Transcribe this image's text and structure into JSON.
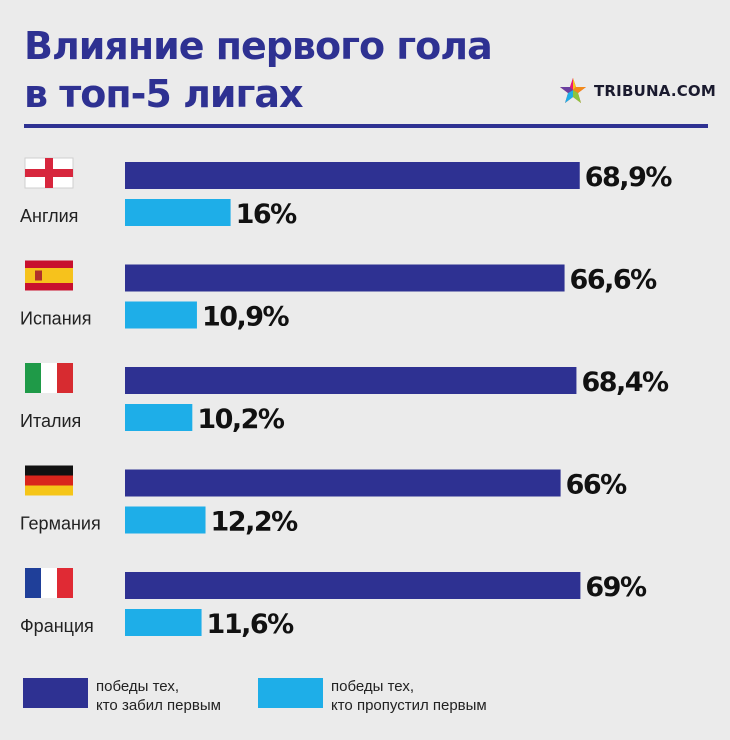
{
  "header": {
    "title_line1": "Влияние первого гола",
    "title_line2": "в топ-5 лигах",
    "logo_text": "TRIBUNA.COM"
  },
  "colors": {
    "background": "#ebebeb",
    "accent": "#2e3192",
    "scored_first": "#2e3192",
    "conceded_first": "#1eaee8"
  },
  "chart_data": {
    "type": "bar",
    "orientation": "horizontal",
    "title": "Влияние первого гола в топ-5 лигах",
    "categories": [
      "Англия",
      "Испания",
      "Италия",
      "Германия",
      "Франция"
    ],
    "flags": [
      "england-flag-icon",
      "spain-flag-icon",
      "italy-flag-icon",
      "germany-flag-icon",
      "france-flag-icon"
    ],
    "series": [
      {
        "name": "победы тех,\nкто забил первым",
        "color": "#2e3192",
        "values": [
          68.9,
          66.6,
          68.4,
          66,
          69
        ],
        "labels": [
          "68,9%",
          "66,6%",
          "68,4%",
          "66%",
          "69%"
        ]
      },
      {
        "name": "победы тех,\nкто пропустил первым",
        "color": "#1eaee8",
        "values": [
          16,
          10.9,
          10.2,
          12.2,
          11.6
        ],
        "labels": [
          "16%",
          "10,9%",
          "10,2%",
          "12,2%",
          "11,6%"
        ]
      }
    ],
    "xlim": [
      0,
      69
    ],
    "grid": false,
    "legend_position": "bottom"
  }
}
